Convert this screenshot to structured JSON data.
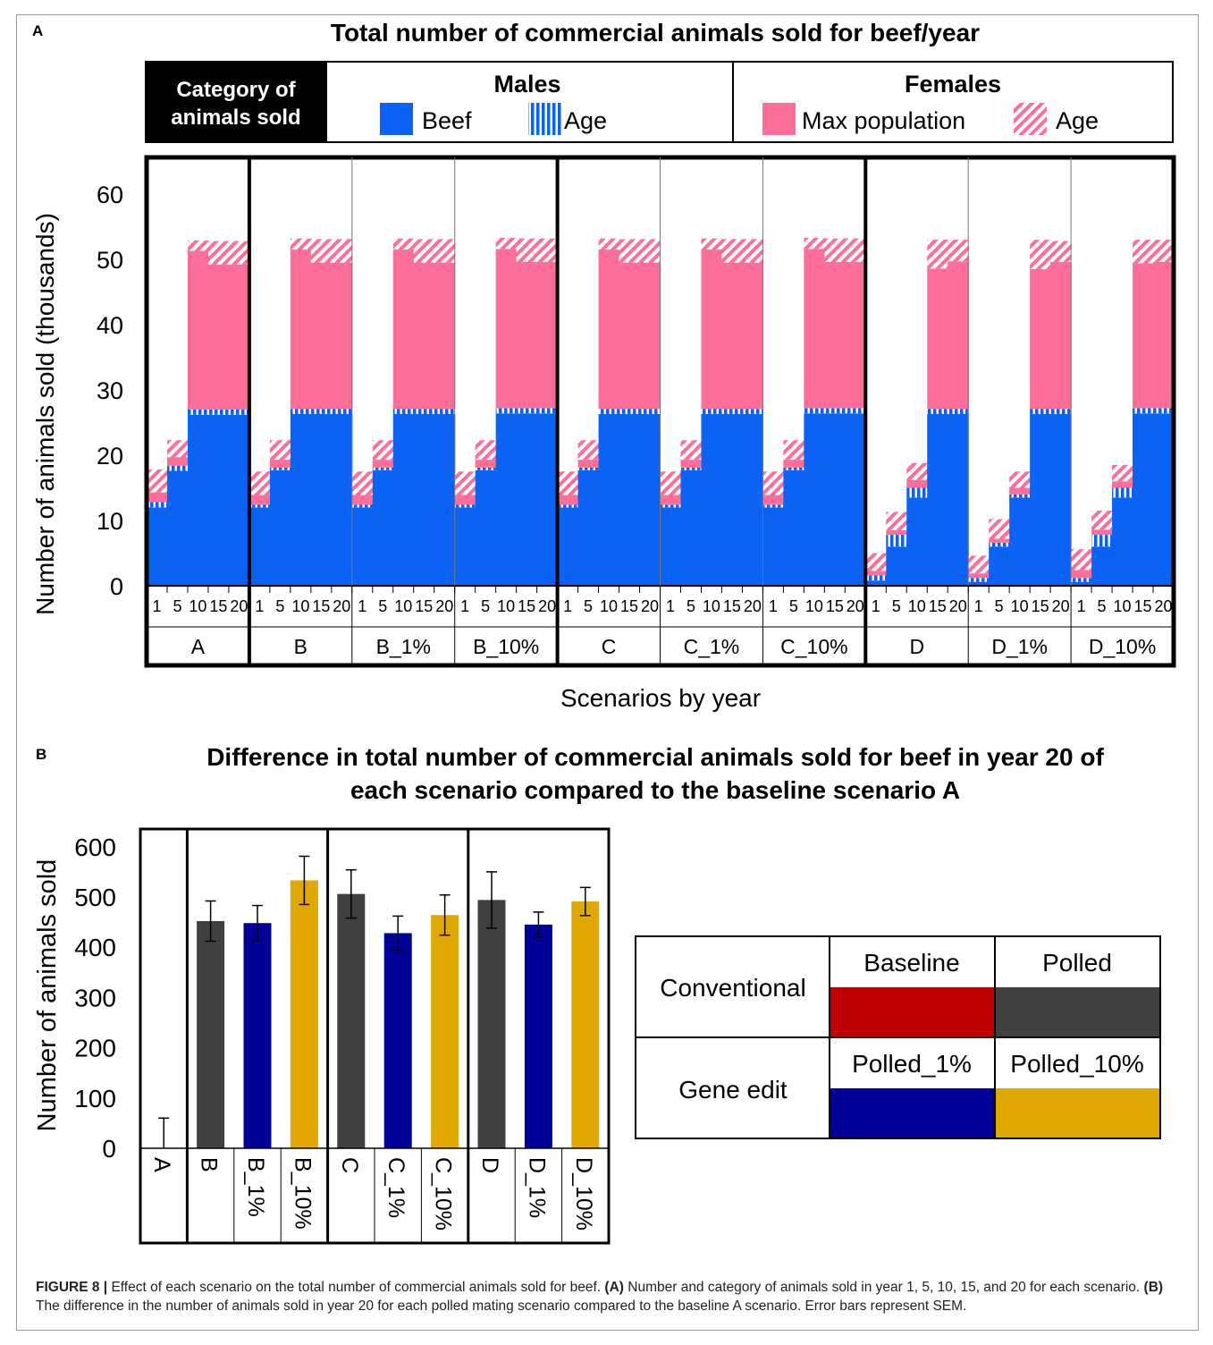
{
  "panelA": {
    "label": "A",
    "title": "Total number of commercial animals sold for beef/year",
    "legend": {
      "category_title": "Category of animals sold",
      "category_line1": "Category of",
      "category_line2": "animals sold",
      "males_title": "Males",
      "females_title": "Females",
      "items": [
        {
          "label": "Beef",
          "color": "#0b63f6",
          "pattern": "solid"
        },
        {
          "label": "Age",
          "color": "#0b63f6",
          "pattern": "vertical-stripes"
        },
        {
          "label": "Max population",
          "color": "#fd6e98",
          "pattern": "solid"
        },
        {
          "label": "Age",
          "color": "#fd6e98",
          "pattern": "diagonal-stripes"
        }
      ]
    },
    "ylabel": "Number of animals sold (thousands)",
    "xlabel": "Scenarios by year",
    "yticks": [
      "0",
      "10",
      "20",
      "30",
      "40",
      "50",
      "60"
    ]
  },
  "panelB": {
    "label": "B",
    "title_line1": "Difference in total number of commercial animals sold for beef in year 20 of",
    "title_line2": "each scenario compared to the baseline scenario A",
    "ylabel": "Number of animals sold",
    "yticks": [
      "0",
      "100",
      "200",
      "300",
      "400",
      "500",
      "600"
    ],
    "legend_table": {
      "rows": [
        "Conventional",
        "Gene edit"
      ],
      "cells": [
        {
          "label": "Baseline",
          "color": "#c00000"
        },
        {
          "label": "Polled",
          "color": "#404040"
        },
        {
          "label": "Polled_1%",
          "color": "#000099"
        },
        {
          "label": "Polled_10%",
          "color": "#e0a800"
        }
      ]
    }
  },
  "caption": {
    "lead": "FIGURE 8 |",
    "text1": " Effect of each scenario on the total number of commercial animals sold for beef. ",
    "a_label": "(A)",
    "text2": " Number and category of animals sold in year 1, 5, 10, 15, and 20 for each scenario. ",
    "b_label": "(B)",
    "text3": " The difference in the number of animals sold in year 20 for each polled mating scenario compared to the baseline A scenario. Error bars represent SEM."
  },
  "chart_data": [
    {
      "type": "bar",
      "stacked": true,
      "title": "Total number of commercial animals sold for beef/year",
      "xlabel": "Scenarios by year",
      "ylabel": "Number of animals sold (thousands)",
      "ylim": [
        0,
        63
      ],
      "year_labels": [
        "1",
        "5",
        "10",
        "15",
        "20"
      ],
      "groups": [
        {
          "name": "A",
          "years": [
            {
              "beef": 12,
              "age_m": 0.8,
              "maxpop": 1.5,
              "age_f": 3.5
            },
            {
              "beef": 17.6,
              "age_m": 0.8,
              "maxpop": 1.3,
              "age_f": 2.6
            },
            {
              "beef": 26.2,
              "age_m": 0.8,
              "maxpop": 24.3,
              "age_f": 1.6
            },
            {
              "beef": 26.2,
              "age_m": 0.8,
              "maxpop": 22.2,
              "age_f": 3.6
            },
            {
              "beef": 26.2,
              "age_m": 0.8,
              "maxpop": 22.2,
              "age_f": 3.6
            }
          ]
        },
        {
          "name": "B",
          "years": [
            {
              "beef": 12,
              "age_m": 0.4,
              "maxpop": 1.5,
              "age_f": 3.6
            },
            {
              "beef": 17.7,
              "age_m": 0.4,
              "maxpop": 1.2,
              "age_f": 3.0
            },
            {
              "beef": 26.3,
              "age_m": 0.8,
              "maxpop": 24.4,
              "age_f": 1.7
            },
            {
              "beef": 26.3,
              "age_m": 0.8,
              "maxpop": 22.4,
              "age_f": 3.6
            },
            {
              "beef": 26.3,
              "age_m": 0.8,
              "maxpop": 22.4,
              "age_f": 3.6
            }
          ]
        },
        {
          "name": "B_1%",
          "years": [
            {
              "beef": 12,
              "age_m": 0.4,
              "maxpop": 1.5,
              "age_f": 3.6
            },
            {
              "beef": 17.7,
              "age_m": 0.4,
              "maxpop": 1.2,
              "age_f": 3.0
            },
            {
              "beef": 26.3,
              "age_m": 0.8,
              "maxpop": 24.4,
              "age_f": 1.7
            },
            {
              "beef": 26.3,
              "age_m": 0.8,
              "maxpop": 22.4,
              "age_f": 3.6
            },
            {
              "beef": 26.3,
              "age_m": 0.8,
              "maxpop": 22.4,
              "age_f": 3.6
            }
          ]
        },
        {
          "name": "B_10%",
          "years": [
            {
              "beef": 12,
              "age_m": 0.4,
              "maxpop": 1.5,
              "age_f": 3.6
            },
            {
              "beef": 17.7,
              "age_m": 0.4,
              "maxpop": 1.2,
              "age_f": 3.0
            },
            {
              "beef": 26.4,
              "age_m": 0.8,
              "maxpop": 24.4,
              "age_f": 1.7
            },
            {
              "beef": 26.4,
              "age_m": 0.8,
              "maxpop": 22.4,
              "age_f": 3.6
            },
            {
              "beef": 26.4,
              "age_m": 0.8,
              "maxpop": 22.4,
              "age_f": 3.6
            }
          ]
        },
        {
          "name": "C",
          "years": [
            {
              "beef": 12,
              "age_m": 0.4,
              "maxpop": 1.5,
              "age_f": 3.6
            },
            {
              "beef": 17.7,
              "age_m": 0.4,
              "maxpop": 1.2,
              "age_f": 3.0
            },
            {
              "beef": 26.3,
              "age_m": 0.8,
              "maxpop": 24.4,
              "age_f": 1.7
            },
            {
              "beef": 26.3,
              "age_m": 0.8,
              "maxpop": 22.4,
              "age_f": 3.6
            },
            {
              "beef": 26.3,
              "age_m": 0.8,
              "maxpop": 22.4,
              "age_f": 3.6
            }
          ]
        },
        {
          "name": "C_1%",
          "years": [
            {
              "beef": 12,
              "age_m": 0.4,
              "maxpop": 1.5,
              "age_f": 3.6
            },
            {
              "beef": 17.7,
              "age_m": 0.4,
              "maxpop": 1.2,
              "age_f": 3.0
            },
            {
              "beef": 26.3,
              "age_m": 0.8,
              "maxpop": 24.4,
              "age_f": 1.7
            },
            {
              "beef": 26.3,
              "age_m": 0.8,
              "maxpop": 22.4,
              "age_f": 3.6
            },
            {
              "beef": 26.3,
              "age_m": 0.8,
              "maxpop": 22.4,
              "age_f": 3.6
            }
          ]
        },
        {
          "name": "C_10%",
          "years": [
            {
              "beef": 12,
              "age_m": 0.4,
              "maxpop": 1.5,
              "age_f": 3.6
            },
            {
              "beef": 17.7,
              "age_m": 0.4,
              "maxpop": 1.2,
              "age_f": 3.0
            },
            {
              "beef": 26.4,
              "age_m": 0.8,
              "maxpop": 24.4,
              "age_f": 1.7
            },
            {
              "beef": 26.4,
              "age_m": 0.8,
              "maxpop": 22.4,
              "age_f": 3.6
            },
            {
              "beef": 26.4,
              "age_m": 0.8,
              "maxpop": 22.4,
              "age_f": 3.6
            }
          ]
        },
        {
          "name": "D",
          "years": [
            {
              "beef": 0.8,
              "age_m": 0.8,
              "maxpop": 0.7,
              "age_f": 2.7
            },
            {
              "beef": 6.0,
              "age_m": 1.8,
              "maxpop": 0.7,
              "age_f": 2.8
            },
            {
              "beef": 13.5,
              "age_m": 1.5,
              "maxpop": 1.2,
              "age_f": 2.6
            },
            {
              "beef": 26.3,
              "age_m": 0.8,
              "maxpop": 21.5,
              "age_f": 4.4
            },
            {
              "beef": 26.3,
              "age_m": 0.8,
              "maxpop": 22.6,
              "age_f": 3.3
            }
          ]
        },
        {
          "name": "D_1%",
          "years": [
            {
              "beef": 0.6,
              "age_m": 0.6,
              "maxpop": 0.7,
              "age_f": 2.7
            },
            {
              "beef": 6.0,
              "age_m": 0.6,
              "maxpop": 0.6,
              "age_f": 3.0
            },
            {
              "beef": 13.5,
              "age_m": 0.5,
              "maxpop": 1.0,
              "age_f": 2.5
            },
            {
              "beef": 26.3,
              "age_m": 0.8,
              "maxpop": 21.4,
              "age_f": 4.5
            },
            {
              "beef": 26.3,
              "age_m": 0.8,
              "maxpop": 22.5,
              "age_f": 3.2
            }
          ]
        },
        {
          "name": "D_10%",
          "years": [
            {
              "beef": 0.6,
              "age_m": 0.6,
              "maxpop": 1.2,
              "age_f": 3.2
            },
            {
              "beef": 6.0,
              "age_m": 1.8,
              "maxpop": 0.8,
              "age_f": 2.9
            },
            {
              "beef": 13.5,
              "age_m": 1.5,
              "maxpop": 1.0,
              "age_f": 2.5
            },
            {
              "beef": 26.4,
              "age_m": 0.8,
              "maxpop": 22.2,
              "age_f": 3.6
            },
            {
              "beef": 26.4,
              "age_m": 0.8,
              "maxpop": 22.4,
              "age_f": 3.4
            }
          ]
        }
      ]
    },
    {
      "type": "bar",
      "title": "Difference in total number of commercial animals sold for beef in year 20 of each scenario compared to the baseline scenario A",
      "ylabel": "Number of animals sold",
      "ylim": [
        0,
        600
      ],
      "categories": [
        "A",
        "B",
        "B_1%",
        "B_10%",
        "C",
        "C_1%",
        "C_10%",
        "D",
        "D_1%",
        "D_10%"
      ],
      "values": [
        0,
        452,
        448,
        533,
        506,
        428,
        464,
        494,
        445,
        491
      ],
      "errors": [
        60,
        40,
        35,
        48,
        48,
        34,
        40,
        56,
        25,
        28
      ],
      "colors": [
        "#c00000",
        "#404040",
        "#000099",
        "#e0a800",
        "#404040",
        "#000099",
        "#e0a800",
        "#404040",
        "#000099",
        "#e0a800"
      ]
    }
  ]
}
